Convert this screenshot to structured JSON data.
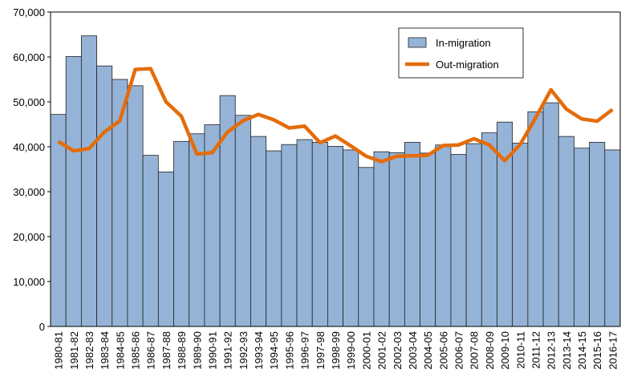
{
  "chart_data": {
    "type": "bar_line",
    "categories": [
      "1980-81",
      "1981-82",
      "1982-83",
      "1983-84",
      "1984-85",
      "1985-86",
      "1986-87",
      "1987-88",
      "1988-89",
      "1989-90",
      "1990-91",
      "1991-92",
      "1992-93",
      "1993-94",
      "1994-95",
      "1995-96",
      "1996-97",
      "1997-98",
      "1998-99",
      "1999-00",
      "2000-01",
      "2001-02",
      "2002-03",
      "2003-04",
      "2004-05",
      "2005-06",
      "2006-07",
      "2007-08",
      "2008-09",
      "2009-10",
      "2010-11",
      "2011-12",
      "2012-13",
      "2013-14",
      "2014-15",
      "2015-16",
      "2016-17"
    ],
    "series": [
      {
        "name": "In-migration",
        "type": "bar",
        "color": "#95b3d7",
        "values": [
          47200,
          60100,
          64700,
          58000,
          55000,
          53600,
          38100,
          34400,
          41200,
          42900,
          44900,
          51400,
          47000,
          42300,
          39100,
          40500,
          41600,
          41000,
          40100,
          39300,
          35400,
          38900,
          38700,
          41000,
          38600,
          40400,
          38300,
          40700,
          43100,
          45500,
          40800,
          47800,
          49800,
          42300,
          39700,
          41000,
          39300
        ]
      },
      {
        "name": "Out-migration",
        "type": "line",
        "color": "#e46c0a",
        "values": [
          41200,
          39100,
          39600,
          43300,
          45800,
          57200,
          57400,
          50000,
          46800,
          38400,
          38700,
          43300,
          45800,
          47200,
          46000,
          44200,
          44600,
          40900,
          42400,
          40200,
          37900,
          36700,
          37900,
          38000,
          38100,
          40300,
          40400,
          41800,
          40400,
          36900,
          40500,
          46400,
          52700,
          48400,
          46200,
          45700,
          48300
        ]
      }
    ],
    "ylim": [
      0,
      70000
    ],
    "yticks": [
      0,
      {
        "value": 10000,
        "label": "10,000"
      },
      {
        "value": 20000,
        "label": "20,000"
      },
      {
        "value": 30000,
        "label": "30,000"
      },
      {
        "value": 40000,
        "label": "40,000"
      },
      {
        "value": 50000,
        "label": "50,000"
      },
      {
        "value": 60000,
        "label": "60,000"
      },
      {
        "value": 70000,
        "label": "70,000"
      }
    ],
    "legend": "top-right"
  }
}
